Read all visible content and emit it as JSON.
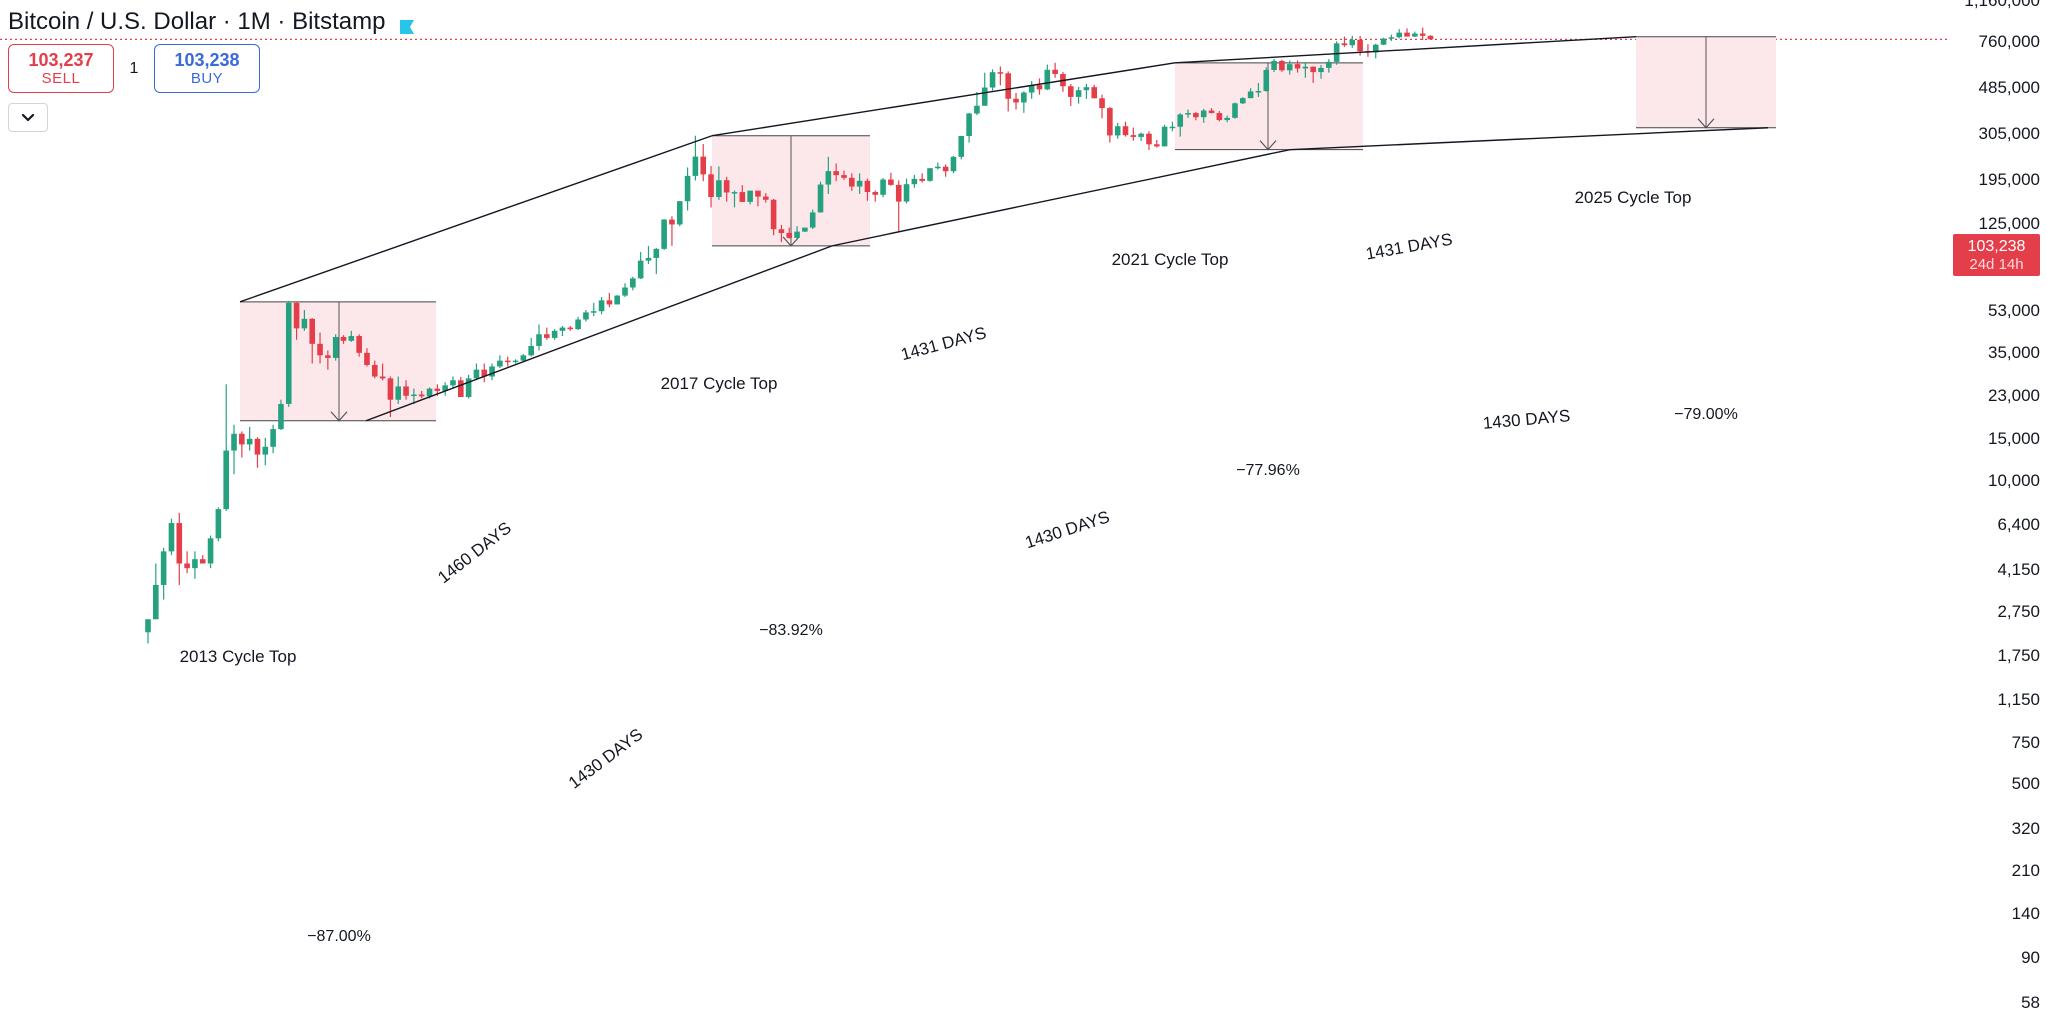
{
  "header": {
    "title": "Bitcoin / U.S. Dollar · 1M · Bitstamp",
    "flag_color": "#29c5e8",
    "sell": {
      "price": "103,237",
      "label": "SELL"
    },
    "quantity": "1",
    "buy": {
      "price": "103,238",
      "label": "BUY"
    }
  },
  "colors": {
    "up": "#26a17f",
    "down": "#e33e4a",
    "box_fill": "#fce8ea",
    "line": "#131722",
    "current_price_line": "#e33e4a"
  },
  "current_price": {
    "price": "103,238",
    "countdown": "24d 14h"
  },
  "chart_data": {
    "type": "candlestick",
    "scale": "log",
    "y_axis_ticks": [
      "1,160,000",
      "760,000",
      "485,000",
      "305,000",
      "195,000",
      "125,000",
      "53,000",
      "35,000",
      "23,000",
      "15,000",
      "10,000",
      "6,400",
      "4,150",
      "2,750",
      "1,750",
      "1,150",
      "750",
      "500",
      "320",
      "210",
      "140",
      "90",
      "58"
    ],
    "annotations": {
      "cycle_tops": [
        "2013 Cycle Top",
        "2017 Cycle Top",
        "2021 Cycle Top",
        "2025 Cycle Top"
      ],
      "top_spans": [
        "1460 DAYS",
        "1431 DAYS",
        "1431 DAYS"
      ],
      "bottom_spans": [
        "1430 DAYS",
        "1430 DAYS",
        "1430 DAYS"
      ],
      "drawdowns": [
        "−87.00%",
        "−83.92%",
        "−77.96%",
        "−79.00%"
      ]
    }
  }
}
